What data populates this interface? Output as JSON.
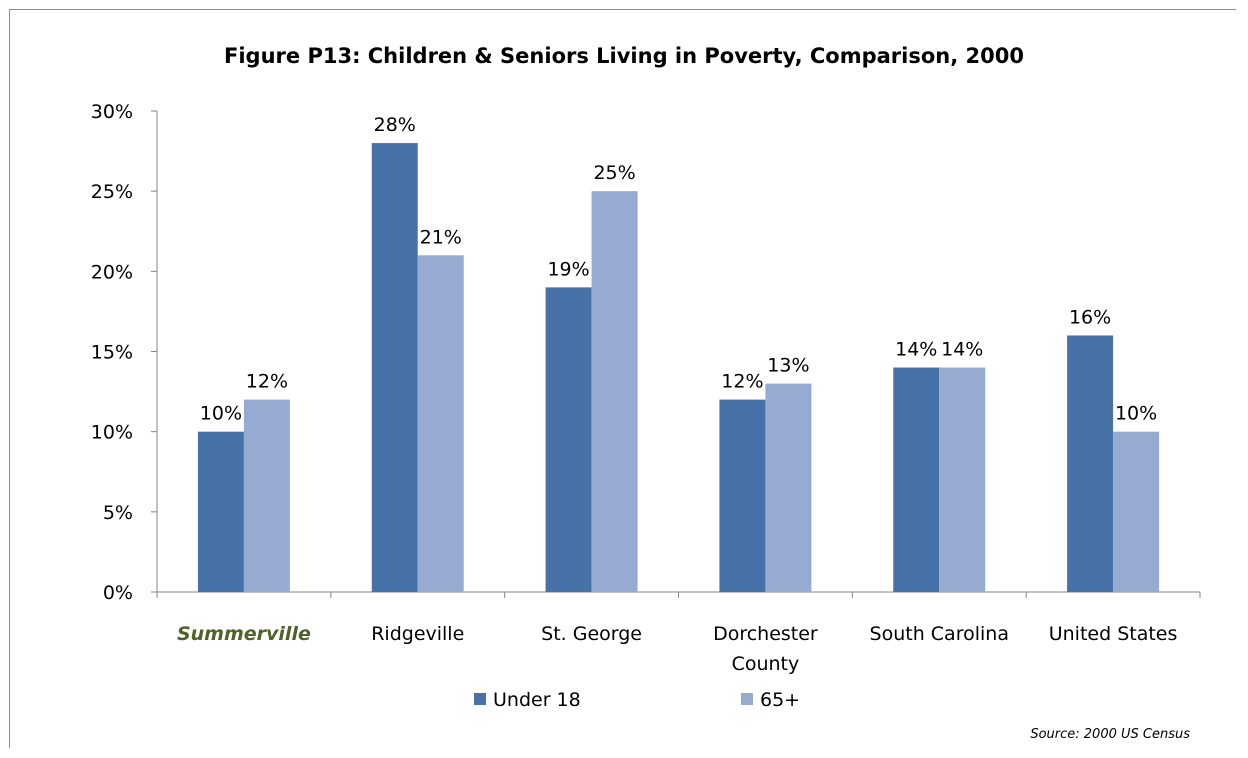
{
  "chart_data": {
    "type": "bar",
    "title": "Figure P13: Children & Seniors  Living in Poverty, Comparison, 2000",
    "categories": [
      "Summerville",
      "Ridgeville",
      "St. George",
      "Dorchester County",
      "South Carolina",
      "United States"
    ],
    "highlight_category": "Summerville",
    "highlight_color": "#4f6228",
    "series": [
      {
        "name": "Under 18",
        "values": [
          10,
          28,
          19,
          12,
          14,
          16
        ],
        "labels": [
          "10%",
          "28%",
          "19%",
          "12%",
          "14%",
          "16%"
        ],
        "color": "#4672a8"
      },
      {
        "name": "65+",
        "values": [
          12,
          21,
          25,
          13,
          14,
          10
        ],
        "labels": [
          "12%",
          "21%",
          "25%",
          "13%",
          "14%",
          "10%"
        ],
        "color": "#97abd2"
      }
    ],
    "ylim": [
      0,
      30
    ],
    "yticks": [
      0,
      5,
      10,
      15,
      20,
      25,
      30
    ],
    "ytick_labels": [
      "0%",
      "5%",
      "10%",
      "15%",
      "20%",
      "25%",
      "30%"
    ],
    "grid": false,
    "legend_position": "bottom",
    "xlabel": "",
    "ylabel": ""
  },
  "source": "Source: 2000 US Census"
}
